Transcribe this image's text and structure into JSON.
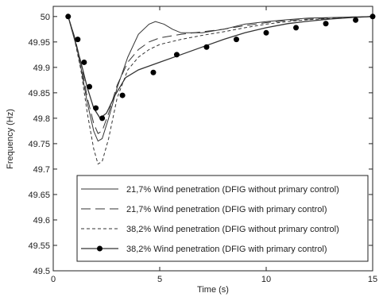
{
  "chart_data": {
    "type": "line",
    "title": "",
    "xlabel": "Time (s)",
    "ylabel": "Frequency (Hz)",
    "xlim": [
      0,
      15
    ],
    "ylim": [
      49.5,
      50.02
    ],
    "xticks": [
      0,
      5,
      10,
      15
    ],
    "yticks": [
      49.5,
      49.55,
      49.6,
      49.65,
      49.7,
      49.75,
      49.8,
      49.85,
      49.9,
      49.95,
      50
    ],
    "grid": false,
    "legend_position": "bottom",
    "series": [
      {
        "name": "21,7% Wind penetration (DFIG without primary control)",
        "style": "solid",
        "x": [
          0.7,
          1.0,
          1.3,
          1.6,
          1.9,
          2.1,
          2.3,
          2.6,
          3.0,
          3.5,
          4.0,
          4.5,
          4.8,
          5.2,
          5.6,
          6.0,
          7.0,
          8.0,
          9.0,
          10.0,
          11.0,
          12.0,
          13.0,
          14.0,
          15.0
        ],
        "y": [
          50.0,
          49.96,
          49.9,
          49.83,
          49.775,
          49.755,
          49.76,
          49.8,
          49.86,
          49.92,
          49.965,
          49.985,
          49.99,
          49.985,
          49.975,
          49.968,
          49.968,
          49.975,
          49.985,
          49.99,
          49.994,
          49.997,
          49.998,
          49.999,
          50.0
        ]
      },
      {
        "name": "21,7% Wind penetration (DFIG with primary control)",
        "style": "longdash",
        "x": [
          0.7,
          1.0,
          1.3,
          1.6,
          1.9,
          2.1,
          2.3,
          2.6,
          3.0,
          3.5,
          4.0,
          4.5,
          5.0,
          6.0,
          7.0,
          8.0,
          9.0,
          10.0,
          11.0,
          12.0,
          13.0,
          14.0,
          15.0
        ],
        "y": [
          50.0,
          49.96,
          49.91,
          49.84,
          49.79,
          49.77,
          49.775,
          49.81,
          49.865,
          49.91,
          49.935,
          49.95,
          49.958,
          49.965,
          49.97,
          49.975,
          49.982,
          49.988,
          49.992,
          49.995,
          49.997,
          49.999,
          50.0
        ]
      },
      {
        "name": "38,2% Wind penetration (DFIG without primary control)",
        "style": "shortdash",
        "x": [
          0.7,
          1.0,
          1.3,
          1.6,
          1.9,
          2.1,
          2.3,
          2.6,
          3.0,
          3.5,
          4.0,
          4.5,
          5.0,
          6.0,
          7.0,
          8.0,
          9.0,
          10.0,
          11.0,
          12.0,
          13.0,
          14.0,
          15.0
        ],
        "y": [
          50.0,
          49.955,
          49.895,
          49.81,
          49.74,
          49.71,
          49.715,
          49.76,
          49.84,
          49.895,
          49.92,
          49.935,
          49.945,
          49.955,
          49.963,
          49.97,
          49.978,
          49.985,
          49.99,
          49.994,
          49.996,
          49.998,
          50.0
        ]
      },
      {
        "name": "38,2% Wind penetration (DFIG with primary control)",
        "style": "solid-markers",
        "x": [
          0.7,
          1.0,
          1.3,
          1.6,
          1.9,
          2.2,
          2.5,
          2.9,
          3.4,
          4.0,
          5.0,
          6.0,
          7.0,
          8.0,
          9.0,
          10.0,
          11.0,
          12.0,
          13.0,
          14.0,
          15.0
        ],
        "y": [
          50.0,
          49.955,
          49.91,
          49.86,
          49.82,
          49.8,
          49.81,
          49.845,
          49.88,
          49.895,
          49.91,
          49.925,
          49.94,
          49.955,
          49.968,
          49.978,
          49.986,
          49.991,
          49.995,
          49.998,
          50.0
        ],
        "marker_x": [
          0.7,
          1.15,
          1.45,
          1.7,
          2.0,
          2.3,
          3.25,
          4.7,
          5.8,
          7.2,
          8.6,
          10.0,
          11.4,
          12.8,
          14.2,
          15.0
        ],
        "marker_y": [
          50.0,
          49.955,
          49.91,
          49.862,
          49.82,
          49.8,
          49.845,
          49.89,
          49.925,
          49.94,
          49.955,
          49.968,
          49.978,
          49.986,
          49.993,
          50.0
        ]
      }
    ]
  }
}
